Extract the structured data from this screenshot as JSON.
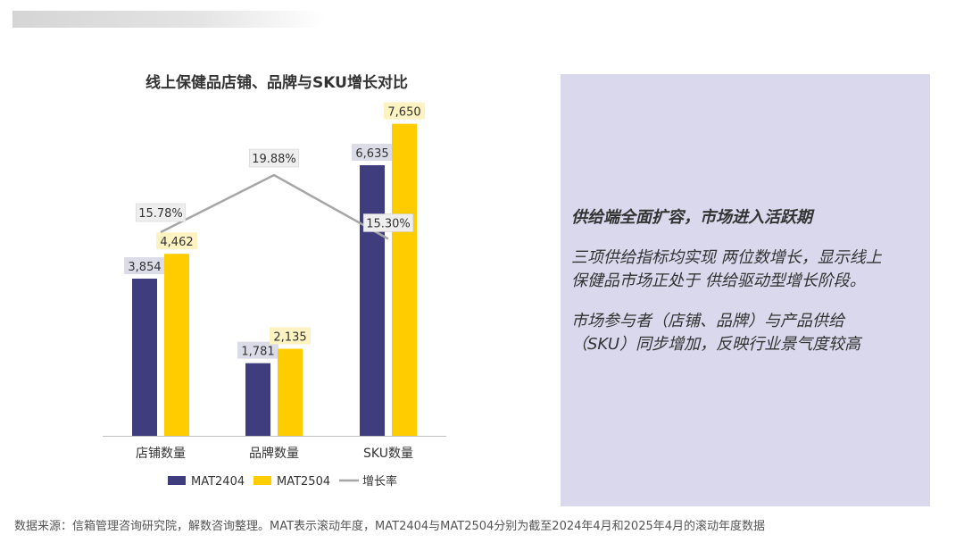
{
  "chart_data": {
    "type": "bar",
    "title": "线上保健品店铺、品牌与SKU增长对比",
    "categories": [
      "店铺数量",
      "品牌数量",
      "SKU数量"
    ],
    "series": [
      {
        "name": "MAT2404",
        "type": "bar",
        "values": [
          3854,
          1781,
          6635
        ],
        "labels": [
          "3,854",
          "1,781",
          "6,635"
        ],
        "color": "#3f3d7e"
      },
      {
        "name": "MAT2504",
        "type": "bar",
        "values": [
          4462,
          2135,
          7650
        ],
        "labels": [
          "4,462",
          "2,135",
          "7,650"
        ],
        "color": "#ffcc00"
      },
      {
        "name": "增长率",
        "type": "line",
        "values": [
          15.78,
          19.88,
          15.3
        ],
        "labels": [
          "15.78%",
          "19.88%",
          "15.30%"
        ],
        "color": "#a6a6a6"
      }
    ],
    "ylim": [
      0,
      8000
    ],
    "grid": false,
    "legend": "bottom",
    "label_bg": {
      "MAT2404": "#dcdbe8",
      "MAT2504": "#fdf2c2",
      "增长率": "#eeeeee"
    }
  },
  "panel": {
    "heading": "供给端全面扩容，市场进入活跃期",
    "para1": "三项供给指标均实现 两位数增长，显示线上\n保健品市场正处于 供给驱动型增长阶段。",
    "para2": "市场参与者（店铺、品牌）与产品供给\n（SKU）同步增加，反映行业景气度较高",
    "background": "#d9d8ec"
  },
  "footnote": "数据来源：信箱管理咨询研究院，解数咨询整理。MAT表示滚动年度，MAT2404与MAT2504分别为截至2024年4月和2025年4月的滚动年度数据"
}
